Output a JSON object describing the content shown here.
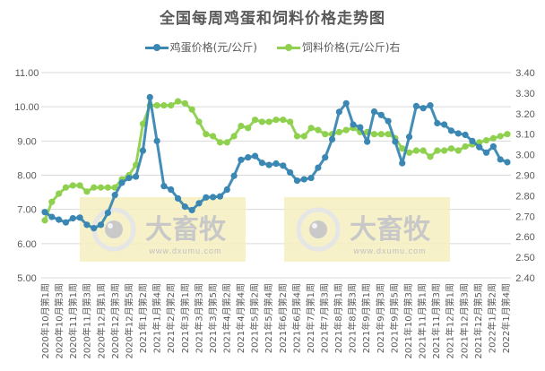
{
  "title": "全国每周鸡蛋和饲料价格走势图",
  "legend": {
    "egg_label": "鸡蛋价格(元/公斤)",
    "feed_label": "饲料价格(元/公斤)右"
  },
  "colors": {
    "egg": "#3a87b3",
    "feed": "#8fd14f",
    "grid": "#d9d9d9",
    "watermark_bg": "#f5efbe"
  },
  "watermark": {
    "brand": "大畜牧",
    "url": "www.dxumu.com"
  },
  "chart_data": {
    "type": "line",
    "title": "全国每周鸡蛋和饲料价格走势图",
    "xlabel": "",
    "ylabel": "",
    "ylim": [
      5.0,
      11.0
    ],
    "y2lim": [
      2.4,
      3.4
    ],
    "left_ticks": [
      "11.00",
      "10.00",
      "9.00",
      "8.00",
      "7.00",
      "6.00",
      "5.00"
    ],
    "right_ticks": [
      "3.40",
      "3.30",
      "3.20",
      "3.10",
      "3.00",
      "2.90",
      "2.80",
      "2.70",
      "2.60",
      "2.50",
      "2.40"
    ],
    "grid": true,
    "legend_position": "top",
    "tick_labels": [
      "2020年10月第1周",
      "2020年10月第3周",
      "2020年11月第1周",
      "2020年11月第3周",
      "2020年12月第1周",
      "2020年12月第3周",
      "2020年12月第5周",
      "2021年1月第2周",
      "2021年1月第4周",
      "2021年2月第2周",
      "2021年3月第1周",
      "2021年3月第3周",
      "2021年3月第5周",
      "2021年4月第2周",
      "2021年4月第4周",
      "2021年5月第2周",
      "2021年5月第4周",
      "2021年6月第2周",
      "2021年6月第4周",
      "2021年7月第1周",
      "2021年7月第3周",
      "2021年8月第1周",
      "2021年8月第3周",
      "2021年9月第1周",
      "2021年9月第3周",
      "2021年9月第5周",
      "2021年10月第3周",
      "2021年11月第1周",
      "2021年11月第3周",
      "2021年12月第1周",
      "2021年12月第3周",
      "2021年12月第5周",
      "2022年1月第2周",
      "2022年1月第4周"
    ],
    "series": [
      {
        "name": "鸡蛋价格(元/公斤)",
        "axis": "left",
        "values": [
          6.92,
          6.78,
          6.7,
          6.62,
          6.74,
          6.76,
          6.55,
          6.45,
          6.55,
          6.9,
          7.42,
          7.78,
          7.92,
          7.96,
          8.72,
          10.28,
          9.0,
          7.68,
          7.58,
          7.32,
          7.08,
          6.98,
          7.18,
          7.35,
          7.36,
          7.38,
          7.58,
          7.98,
          8.45,
          8.52,
          8.56,
          8.36,
          8.3,
          8.34,
          8.28,
          8.08,
          7.84,
          7.88,
          7.92,
          8.22,
          8.52,
          9.05,
          9.85,
          10.1,
          9.48,
          9.4,
          8.98,
          9.86,
          9.76,
          9.58,
          8.98,
          8.35,
          9.12,
          10.02,
          9.96,
          10.04,
          9.52,
          9.48,
          9.3,
          9.22,
          9.18,
          9.0,
          8.82,
          8.66,
          8.84,
          8.46,
          8.38
        ]
      },
      {
        "name": "饲料价格(元/公斤)右",
        "axis": "right",
        "values": [
          2.68,
          2.77,
          2.81,
          2.84,
          2.85,
          2.85,
          2.82,
          2.84,
          2.84,
          2.84,
          2.84,
          2.88,
          2.9,
          2.95,
          3.15,
          3.24,
          3.24,
          3.24,
          3.24,
          3.26,
          3.25,
          3.22,
          3.16,
          3.1,
          3.09,
          3.06,
          3.06,
          3.09,
          3.14,
          3.13,
          3.17,
          3.16,
          3.16,
          3.17,
          3.17,
          3.16,
          3.09,
          3.09,
          3.13,
          3.12,
          3.1,
          3.1,
          3.11,
          3.12,
          3.13,
          3.11,
          3.11,
          3.1,
          3.1,
          3.1,
          3.08,
          3.03,
          3.01,
          3.02,
          3.02,
          2.99,
          3.02,
          3.02,
          3.03,
          3.02,
          3.04,
          3.05,
          3.06,
          3.07,
          3.08,
          3.09,
          3.1
        ]
      }
    ]
  }
}
